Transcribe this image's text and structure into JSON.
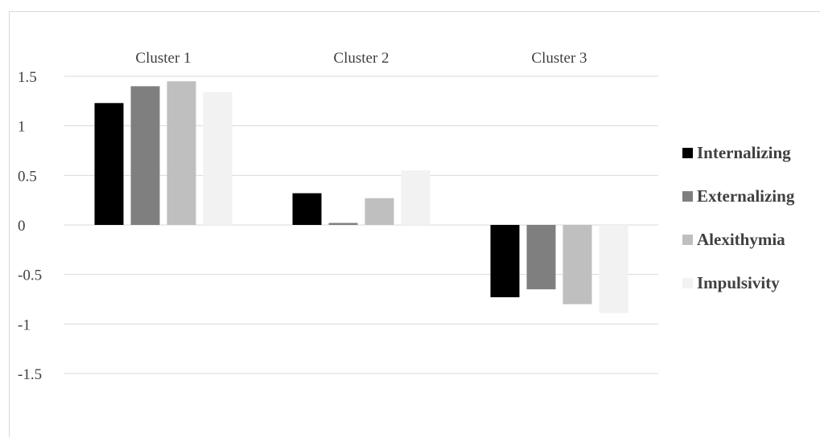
{
  "chart_data": {
    "type": "bar",
    "title": "",
    "xlabel": "",
    "ylabel": "",
    "categories": [
      "Cluster 1",
      "Cluster 2",
      "Cluster 3"
    ],
    "category_axis_position": "top",
    "y_ticks": [
      "1.5",
      "1",
      "0.5",
      "0",
      "-0.5",
      "-1",
      "-1.5"
    ],
    "ylim": [
      -1.5,
      1.5
    ],
    "grid": true,
    "legend_position": "right",
    "series": [
      {
        "name": "Internalizing",
        "color": "#000000",
        "values": [
          1.23,
          0.32,
          -0.73
        ]
      },
      {
        "name": "Externalizing",
        "color": "#7f7f7f",
        "values": [
          1.4,
          0.02,
          -0.65
        ]
      },
      {
        "name": "Alexithymia",
        "color": "#bfbfbf",
        "values": [
          1.45,
          0.27,
          -0.8
        ]
      },
      {
        "name": "Impulsivity",
        "color": "#f2f2f2",
        "values": [
          1.34,
          0.55,
          -0.89
        ]
      }
    ]
  }
}
